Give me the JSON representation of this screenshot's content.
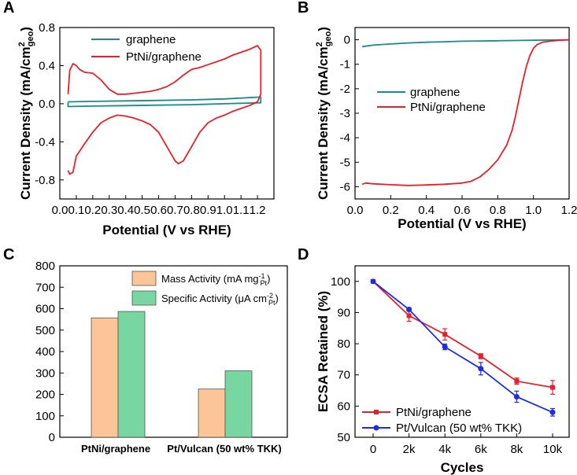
{
  "colors": {
    "graphene": "#1a8a8a",
    "ptni": "#e8202a",
    "ptvulcan": "#1f2de0",
    "mass_bar": "#fbc598",
    "specific_bar": "#78d6a0"
  },
  "chart_data": [
    {
      "panel": "A",
      "type": "line",
      "xlabel": "Potential (V vs RHE)",
      "ylabel": "Current Density (mA/cm",
      "ylabel_sup": "2",
      "ylabel_sub": "geo",
      "ylabel_close": ")",
      "xlim": [
        0.0,
        1.3
      ],
      "ylim": [
        -1.0,
        0.8
      ],
      "xticks": [
        0.0,
        0.1,
        0.2,
        0.3,
        0.4,
        0.5,
        0.6,
        0.7,
        0.8,
        0.9,
        1.0,
        1.1,
        1.2
      ],
      "xticklabels": [
        "0.0",
        "0.1",
        "0.2",
        "0.3",
        "0.4",
        "0.5",
        "0.6",
        "0.7",
        "0.8",
        "0.9",
        "1.0",
        "1.1",
        "1.2"
      ],
      "yticks": [
        -0.8,
        -0.4,
        0.0,
        0.4,
        0.8
      ],
      "yticklabels": [
        "-0.8",
        "-0.4",
        "0.0",
        "0.4",
        "0.8"
      ],
      "legend": [
        "graphene",
        "PtNi/graphene"
      ],
      "series": [
        {
          "name": "graphene",
          "x": [
            0.05,
            0.2,
            0.4,
            0.6,
            0.8,
            1.0,
            1.22,
            1.22,
            1.0,
            0.8,
            0.6,
            0.4,
            0.2,
            0.05,
            0.05
          ],
          "y": [
            0.02,
            0.025,
            0.03,
            0.035,
            0.04,
            0.05,
            0.07,
            0.01,
            0.0,
            -0.01,
            -0.015,
            -0.02,
            -0.025,
            -0.03,
            0.02
          ]
        },
        {
          "name": "PtNi/graphene",
          "x": [
            0.05,
            0.06,
            0.08,
            0.1,
            0.12,
            0.15,
            0.2,
            0.25,
            0.3,
            0.35,
            0.4,
            0.45,
            0.5,
            0.55,
            0.6,
            0.65,
            0.7,
            0.75,
            0.8,
            0.85,
            0.9,
            0.95,
            1.0,
            1.05,
            1.1,
            1.15,
            1.2,
            1.22,
            1.22,
            1.2,
            1.15,
            1.1,
            1.05,
            1.0,
            0.95,
            0.9,
            0.85,
            0.8,
            0.75,
            0.72,
            0.7,
            0.65,
            0.6,
            0.55,
            0.5,
            0.45,
            0.4,
            0.35,
            0.3,
            0.25,
            0.2,
            0.15,
            0.12,
            0.1,
            0.08,
            0.06,
            0.05
          ],
          "y": [
            0.1,
            0.35,
            0.42,
            0.4,
            0.36,
            0.33,
            0.32,
            0.25,
            0.15,
            0.1,
            0.1,
            0.11,
            0.12,
            0.13,
            0.15,
            0.18,
            0.23,
            0.3,
            0.36,
            0.38,
            0.41,
            0.44,
            0.47,
            0.51,
            0.54,
            0.57,
            0.61,
            0.56,
            0.1,
            0.02,
            -0.02,
            -0.05,
            -0.08,
            -0.12,
            -0.15,
            -0.2,
            -0.3,
            -0.45,
            -0.6,
            -0.63,
            -0.6,
            -0.45,
            -0.3,
            -0.22,
            -0.18,
            -0.15,
            -0.13,
            -0.12,
            -0.15,
            -0.2,
            -0.3,
            -0.42,
            -0.5,
            -0.55,
            -0.72,
            -0.74,
            -0.7
          ]
        }
      ]
    },
    {
      "panel": "B",
      "type": "line",
      "xlabel": "Potential (V vs RHE)",
      "ylabel": "Current Density (mA/cm",
      "ylabel_sup": "2",
      "ylabel_sub": "geo",
      "ylabel_close": ")",
      "xlim": [
        0.0,
        1.2
      ],
      "ylim": [
        -6.5,
        0.5
      ],
      "xticks": [
        0.0,
        0.2,
        0.4,
        0.6,
        0.8,
        1.0,
        1.2
      ],
      "xticklabels": [
        "0.0",
        "0.2",
        "0.4",
        "0.6",
        "0.8",
        "1.0",
        "1.2"
      ],
      "yticks": [
        -6,
        -5,
        -4,
        -3,
        -2,
        -1,
        0
      ],
      "yticklabels": [
        "-6",
        "-5",
        "-4",
        "-3",
        "-2",
        "-1",
        "0"
      ],
      "legend": [
        "graphene",
        "PtNi/graphene"
      ],
      "series": [
        {
          "name": "graphene",
          "x": [
            0.04,
            0.1,
            0.2,
            0.3,
            0.4,
            0.5,
            0.6,
            0.7,
            0.8,
            0.9,
            1.0,
            1.1,
            1.2
          ],
          "y": [
            -0.28,
            -0.22,
            -0.17,
            -0.13,
            -0.1,
            -0.08,
            -0.06,
            -0.05,
            -0.04,
            -0.03,
            -0.02,
            -0.01,
            0.0
          ]
        },
        {
          "name": "PtNi/graphene",
          "x": [
            0.04,
            0.06,
            0.1,
            0.2,
            0.3,
            0.4,
            0.5,
            0.6,
            0.65,
            0.7,
            0.75,
            0.8,
            0.85,
            0.88,
            0.9,
            0.92,
            0.94,
            0.96,
            0.98,
            1.0,
            1.02,
            1.05,
            1.1,
            1.15,
            1.2
          ],
          "y": [
            -5.9,
            -5.85,
            -5.88,
            -5.92,
            -5.95,
            -5.93,
            -5.9,
            -5.85,
            -5.78,
            -5.6,
            -5.3,
            -4.9,
            -4.3,
            -3.7,
            -3.1,
            -2.4,
            -1.7,
            -1.1,
            -0.65,
            -0.35,
            -0.2,
            -0.1,
            -0.05,
            -0.02,
            0.0
          ]
        }
      ]
    },
    {
      "panel": "C",
      "type": "bar",
      "categories": [
        "PtNi/graphene",
        "Pt/Vulcan (50 wt% TKK)"
      ],
      "ylim": [
        0,
        800
      ],
      "yticks": [
        0,
        100,
        200,
        300,
        400,
        500,
        600,
        700,
        800
      ],
      "yticklabels": [
        "0",
        "100",
        "200",
        "300",
        "400",
        "500",
        "600",
        "700",
        "800"
      ],
      "series": [
        {
          "name": "Mass Activity",
          "label_main": "Mass Activity (mA mg",
          "label_sup": "-1",
          "label_sub": "Pt",
          "label_close": ")",
          "values": [
            557,
            225
          ]
        },
        {
          "name": "Specific Activity",
          "label_main": "Specific Activity (μA cm",
          "label_sup": "-2",
          "label_sub": "Pt",
          "label_close": ")",
          "values": [
            587,
            310
          ]
        }
      ]
    },
    {
      "panel": "D",
      "type": "line",
      "xlabel": "Cycles",
      "ylabel": "ECSA Retained (%)",
      "categories": [
        "0",
        "2k",
        "4k",
        "6k",
        "8k",
        "10k"
      ],
      "ylim": [
        50,
        105
      ],
      "yticks": [
        50,
        60,
        70,
        80,
        90,
        100
      ],
      "yticklabels": [
        "50",
        "60",
        "70",
        "80",
        "90",
        "100"
      ],
      "legend": [
        "PtNi/graphene",
        "Pt/Vulcan (50 wt% TKK)"
      ],
      "series": [
        {
          "name": "PtNi/graphene",
          "values": [
            100,
            89,
            83,
            76,
            68,
            66
          ],
          "errors": [
            0,
            1.8,
            1.8,
            0.8,
            1.0,
            2.2
          ]
        },
        {
          "name": "Pt/Vulcan (50 wt% TKK)",
          "values": [
            100,
            91,
            79,
            72,
            63,
            58
          ],
          "errors": [
            0,
            0.6,
            0.9,
            2.0,
            1.8,
            1.2
          ]
        }
      ]
    }
  ]
}
